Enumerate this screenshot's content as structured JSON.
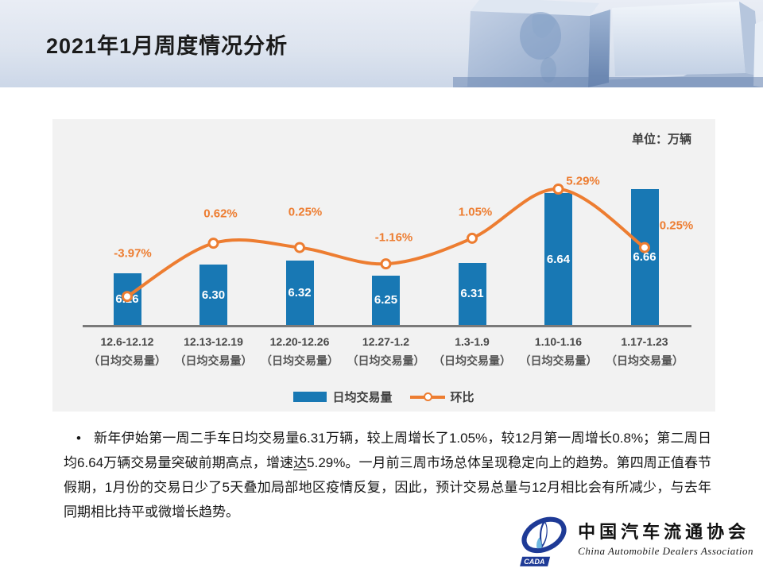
{
  "header": {
    "title": "2021年1月周度情况分析"
  },
  "chart_data": {
    "type": "bar",
    "combo": "bar+line",
    "title": "",
    "unit_label": "单位：万辆",
    "categories": [
      "12.6-12.12",
      "12.13-12.19",
      "12.20-12.26",
      "12.27-1.2",
      "1.3-1.9",
      "1.10-1.16",
      "1.17-1.23"
    ],
    "category_sublabel": "（日均交易量）",
    "series": [
      {
        "name": "日均交易量",
        "type": "bar",
        "unit": "万辆",
        "values": [
          6.26,
          6.3,
          6.32,
          6.25,
          6.31,
          6.64,
          6.66
        ],
        "value_labels": [
          "6.26",
          "6.30",
          "6.32",
          "6.25",
          "6.31",
          "6.64",
          "6.66"
        ],
        "color": "#1878b4"
      },
      {
        "name": "环比",
        "type": "line",
        "values": [
          -3.97,
          0.62,
          0.25,
          -1.16,
          1.05,
          5.29,
          0.25
        ],
        "value_labels": [
          "-3.97%",
          "0.62%",
          "0.25%",
          "-1.16%",
          "1.05%",
          "5.29%",
          "0.25%"
        ],
        "color": "#ed7d31"
      }
    ],
    "ylim": [
      6.0,
      6.78
    ],
    "grid": false,
    "legend_position": "bottom-center"
  },
  "body": {
    "bullet": "•",
    "text_before": "新年伊始第一周二手车日均交易量6.31万辆，较上周增长了1.05%，较12月第一周增长0.8%；第二周日均6.64万辆交易量突破前期高点，增速",
    "text_underlined": "达",
    "text_after": "5.29%。一月前三周市场总体呈现稳定向上的趋势。第四周正值春节假期，1月份的交易日少了5天叠加局部地区疫情反复，因此，预计交易总量与12月相比会有所减少，与去年同期相比持平或微增长趋势。"
  },
  "logo": {
    "acronym": "CADA",
    "name_cn": "中国汽车流通协会",
    "name_en": "China Automobile Dealers Association"
  },
  "colors": {
    "bar": "#1878b4",
    "line": "#ed7d31",
    "chart_bg": "#f2f2f2",
    "axis": "#7a7a7a",
    "text_dark": "#3f3f3f"
  }
}
